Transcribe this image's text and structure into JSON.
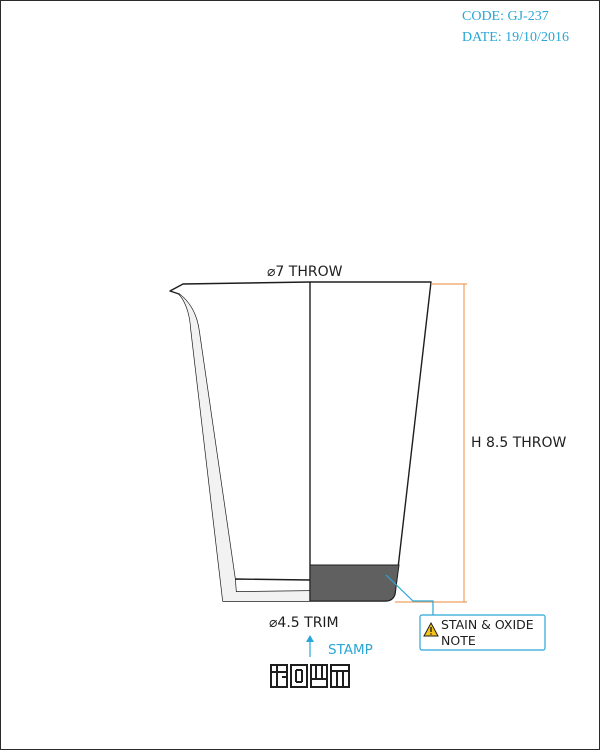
{
  "header": {
    "code": "CODE: GJ-237",
    "date": "DATE: 19/10/2016"
  },
  "dimensions": {
    "rim_diameter": "⌀7 THROW",
    "foot_diameter": "⌀4.5 TRIM",
    "height": "H 8.5 THROW"
  },
  "callouts": {
    "stamp": "STAMP",
    "note_line1": "STAIN & OXIDE",
    "note_line2": "NOTE"
  },
  "colors": {
    "accent": "#2aa7d6",
    "height_dimension": "#f0a060",
    "stain_band": "#606060",
    "outline": "#1e1e1e"
  },
  "icons": {
    "warning": "warning-triangle-icon",
    "stamp": "maker-seal-icon"
  }
}
